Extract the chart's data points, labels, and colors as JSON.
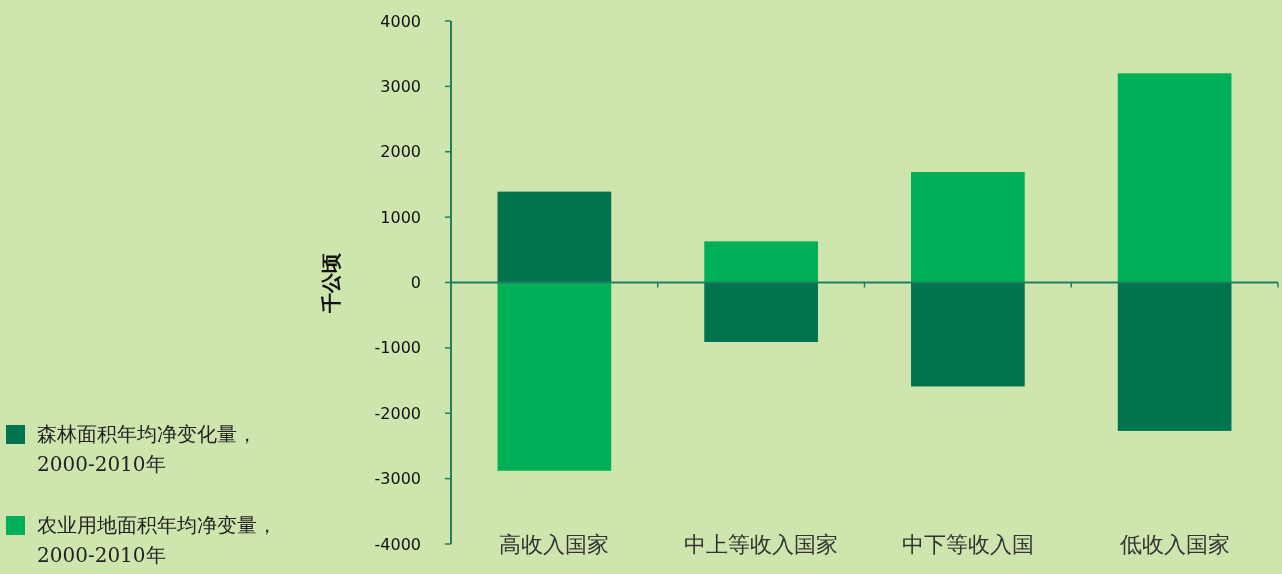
{
  "chart_data": {
    "type": "bar",
    "stacked": true,
    "categories": [
      "高收入国家",
      "中上等收入国家",
      "中下等收入国",
      "低收入国家"
    ],
    "series": [
      {
        "name": "森林面积年均净变化量，2000-2010年",
        "color": "#00734f",
        "values": [
          1390,
          -910,
          -1590,
          -2270
        ]
      },
      {
        "name": "农业用地面积年均净变量，2000-2010年",
        "color": "#00b058",
        "values": [
          -2880,
          630,
          1690,
          3200
        ]
      }
    ],
    "ylabel": "千公顷",
    "ylim": [
      -4000,
      4000
    ],
    "yticks": [
      -4000,
      -3000,
      -2000,
      -1000,
      0,
      1000,
      2000,
      3000,
      4000
    ],
    "ref_lines": [
      {
        "axis": "y",
        "value": 0,
        "color": "#1f8060",
        "line_style": "solid"
      }
    ],
    "legend": "bottom left"
  }
}
